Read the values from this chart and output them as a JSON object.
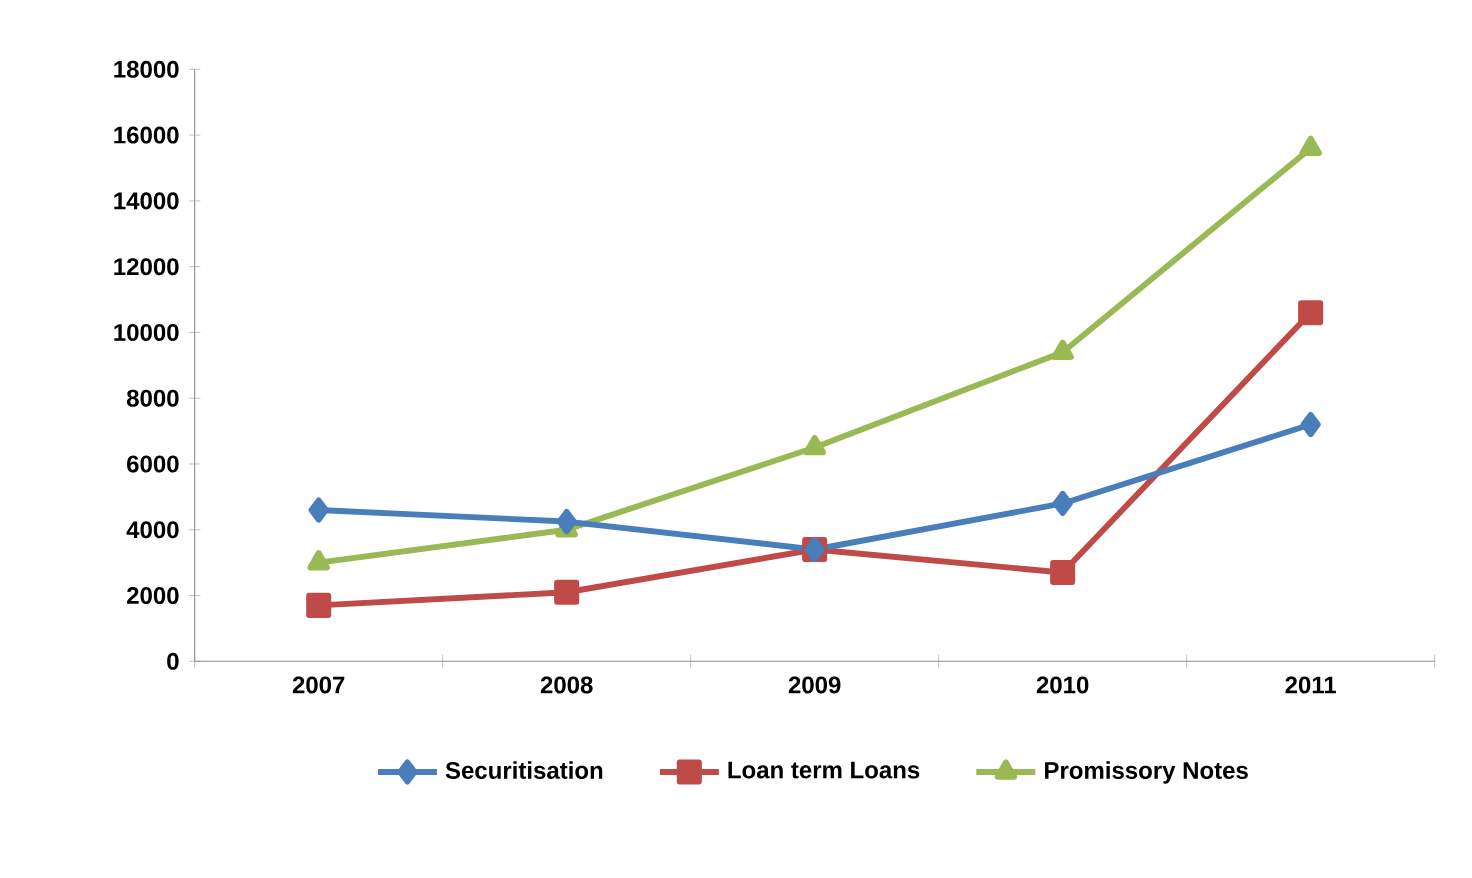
{
  "chart_data": {
    "type": "line",
    "categories": [
      "2007",
      "2008",
      "2009",
      "2010",
      "2011"
    ],
    "series": [
      {
        "name": "Securitisation",
        "color": "#4a7ebb",
        "marker": "diamond",
        "values": [
          4600,
          4250,
          3400,
          4800,
          7200
        ]
      },
      {
        "name": "Loan term Loans",
        "color": "#be4b48",
        "marker": "square",
        "values": [
          1700,
          2100,
          3400,
          2700,
          10600
        ]
      },
      {
        "name": "Promissory Notes",
        "color": "#98b954",
        "marker": "triangle",
        "values": [
          3000,
          4000,
          6500,
          9400,
          15600
        ]
      }
    ],
    "ylim": [
      0,
      18000
    ],
    "yticks": [
      0,
      2000,
      4000,
      6000,
      8000,
      10000,
      12000,
      14000,
      16000,
      18000
    ],
    "grid": false,
    "legend": "bottom"
  }
}
